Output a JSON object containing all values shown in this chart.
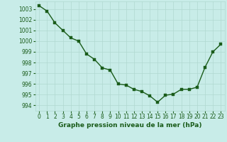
{
  "x": [
    0,
    1,
    2,
    3,
    4,
    5,
    6,
    7,
    8,
    9,
    10,
    11,
    12,
    13,
    14,
    15,
    16,
    17,
    18,
    19,
    20,
    21,
    22,
    23
  ],
  "y": [
    1003.3,
    1002.8,
    1001.7,
    1001.0,
    1000.3,
    1000.0,
    998.8,
    998.3,
    997.5,
    997.3,
    996.0,
    995.9,
    995.5,
    995.3,
    994.9,
    994.3,
    994.95,
    995.05,
    995.5,
    995.5,
    995.7,
    997.55,
    999.0,
    999.7
  ],
  "line_color": "#1a5c1a",
  "marker_color": "#1a5c1a",
  "background_color": "#c8ece8",
  "grid_color": "#b0d8d0",
  "xlabel": "Graphe pression niveau de la mer (hPa)",
  "ylabel_ticks": [
    994,
    995,
    996,
    997,
    998,
    999,
    1000,
    1001,
    1002,
    1003
  ],
  "ylim": [
    993.5,
    1003.7
  ],
  "xlim": [
    -0.5,
    23.5
  ],
  "xtick_labels": [
    "0",
    "1",
    "2",
    "3",
    "4",
    "5",
    "6",
    "7",
    "8",
    "9",
    "10",
    "11",
    "12",
    "13",
    "14",
    "15",
    "16",
    "17",
    "18",
    "19",
    "20",
    "21",
    "22",
    "23"
  ],
  "tick_fontsize": 5.5,
  "xlabel_fontsize": 6.5,
  "marker_size": 2.5,
  "line_width": 1.0
}
